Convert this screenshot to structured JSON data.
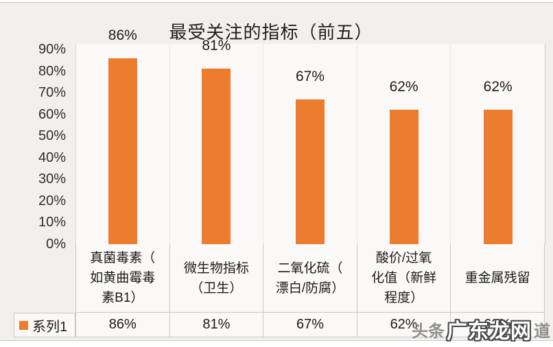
{
  "chart_data": {
    "type": "bar",
    "title": "最受关注的指标（前五）",
    "categories": [
      "真菌毒素（如黄曲霉毒素B1）",
      "微生物指标（卫生）",
      "二氧化硫（漂白/防腐）",
      "酸价/过氧化值（新鲜程度）",
      "重金属残留"
    ],
    "categories_display": [
      "真菌毒素（\n如黄曲霉毒\n素B1）",
      "微生物指标\n（卫生）",
      "二氧化硫（\n漂白/防腐）",
      "酸价/过氧\n化值（新鲜\n程度）",
      "重金属残留"
    ],
    "series": [
      {
        "name": "系列1",
        "values": [
          86,
          81,
          67,
          62,
          62
        ]
      }
    ],
    "values": [
      86,
      81,
      67,
      62,
      62
    ],
    "labels": [
      "86%",
      "81%",
      "67%",
      "62%",
      "62%"
    ],
    "xlabel": "",
    "ylabel": "",
    "ylim": [
      0,
      90
    ],
    "yticks": [
      "0%",
      "10%",
      "20%",
      "30%",
      "40%",
      "50%",
      "60%",
      "70%",
      "80%",
      "90%"
    ],
    "grid": false,
    "legend_position": "bottom-left-data-table",
    "bar_color": "#EC7D2E",
    "data_table_shown": true
  },
  "data_table": {
    "series_label": "系列1",
    "values": [
      "86%",
      "81%",
      "67%",
      "62%",
      "62%"
    ]
  },
  "legend": {
    "series1_label": "系列1",
    "marker_color": "#EC7D2E"
  },
  "watermark": {
    "prefix": "头条",
    "brand": "广东龙网",
    "suffix": "道"
  },
  "colors": {
    "bar": "#EC7D2E",
    "background": "#F1F0ED",
    "plot_background": "#FAF9F7",
    "table_border": "#C9C8C5",
    "text": "#1A1A1A"
  }
}
